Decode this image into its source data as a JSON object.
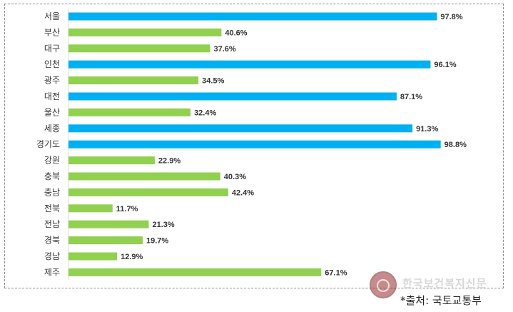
{
  "chart_data": {
    "type": "bar",
    "orientation": "horizontal",
    "categories": [
      "서울",
      "부산",
      "대구",
      "인천",
      "광주",
      "대전",
      "울산",
      "세종",
      "경기도",
      "강원",
      "충북",
      "충남",
      "전북",
      "전남",
      "경북",
      "경남",
      "제주"
    ],
    "values": [
      97.8,
      40.6,
      37.6,
      96.1,
      34.5,
      87.1,
      32.4,
      91.3,
      98.8,
      22.9,
      40.3,
      42.4,
      11.7,
      21.3,
      19.7,
      12.9,
      67.1
    ],
    "value_labels": [
      "97.8%",
      "40.6%",
      "37.6%",
      "96.1%",
      "34.5%",
      "87.1%",
      "32.4%",
      "91.3%",
      "98.8%",
      "22.9%",
      "40.3%",
      "42.4%",
      "11.7%",
      "21.3%",
      "19.7%",
      "12.9%",
      "67.1%"
    ],
    "highlighted": [
      "서울",
      "인천",
      "대전",
      "세종",
      "경기도"
    ],
    "colors": {
      "highlight": "#00b0f0",
      "normal": "#92d050"
    },
    "xlim": [
      0,
      100
    ],
    "grid": false,
    "legend": "none"
  },
  "source_note": "*출처: 국토교통부",
  "watermark": {
    "text": "한국보건복지신문",
    "icon": "pen-nib-icon"
  }
}
